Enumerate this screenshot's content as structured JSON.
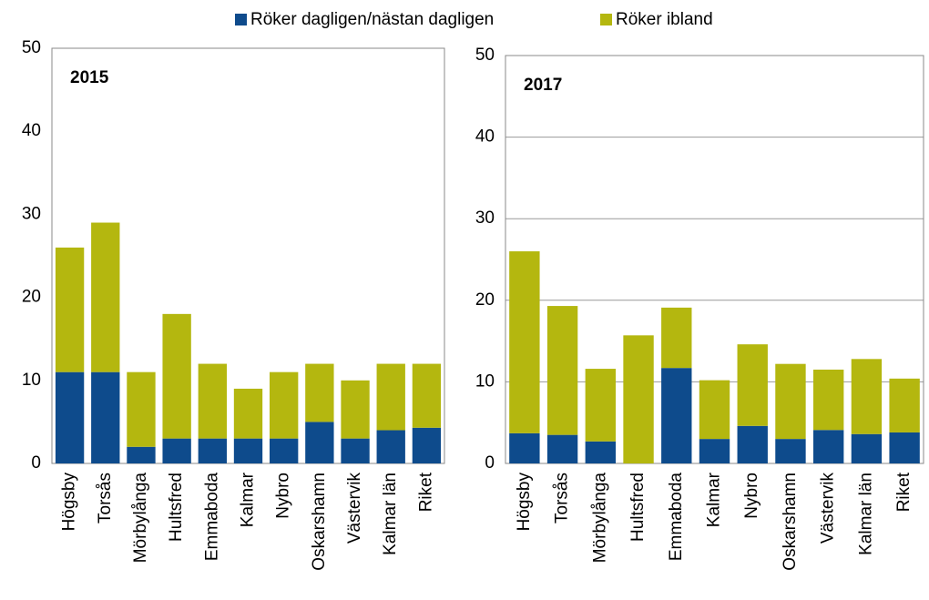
{
  "legend": [
    "Röker dagligen/nästan dagligen",
    "Röker ibland"
  ],
  "chart_data": [
    {
      "type": "stacked_bar",
      "title": "2015",
      "categories": [
        "Högsby",
        "Torsås",
        "Mörbylånga",
        "Hultsfred",
        "Emmaboda",
        "Kalmar",
        "Nybro",
        "Oskarshamn",
        "Västervik",
        "Kalmar län",
        "Riket"
      ],
      "series": [
        {
          "color": "#0e4b8c",
          "values": [
            11,
            11,
            2,
            3,
            3,
            3,
            3,
            5,
            3,
            4,
            4.3
          ]
        },
        {
          "color": "#b4b70f",
          "values": [
            15,
            18,
            9,
            15,
            9,
            6,
            8,
            7,
            7,
            8,
            7.7
          ]
        }
      ],
      "ylim": [
        0,
        50
      ],
      "yticks": [
        0,
        10,
        20,
        30,
        40,
        50
      ],
      "grid": false
    },
    {
      "type": "stacked_bar",
      "title": "2017",
      "categories": [
        "Högsby",
        "Torsås",
        "Mörbylånga",
        "Hultsfred",
        "Emmaboda",
        "Kalmar",
        "Nybro",
        "Oskarshamn",
        "Västervik",
        "Kalmar län",
        "Riket"
      ],
      "series": [
        {
          "color": "#0e4b8c",
          "values": [
            3.7,
            3.5,
            2.7,
            0,
            11.7,
            3.0,
            4.6,
            3.0,
            4.1,
            3.6,
            3.8
          ]
        },
        {
          "color": "#b4b70f",
          "values": [
            22.3,
            15.8,
            8.9,
            15.7,
            7.4,
            7.2,
            10,
            9.2,
            7.4,
            9.2,
            6.6
          ]
        }
      ],
      "ylim": [
        0,
        50
      ],
      "yticks": [
        0,
        10,
        20,
        30,
        40,
        50
      ],
      "grid": true
    }
  ]
}
